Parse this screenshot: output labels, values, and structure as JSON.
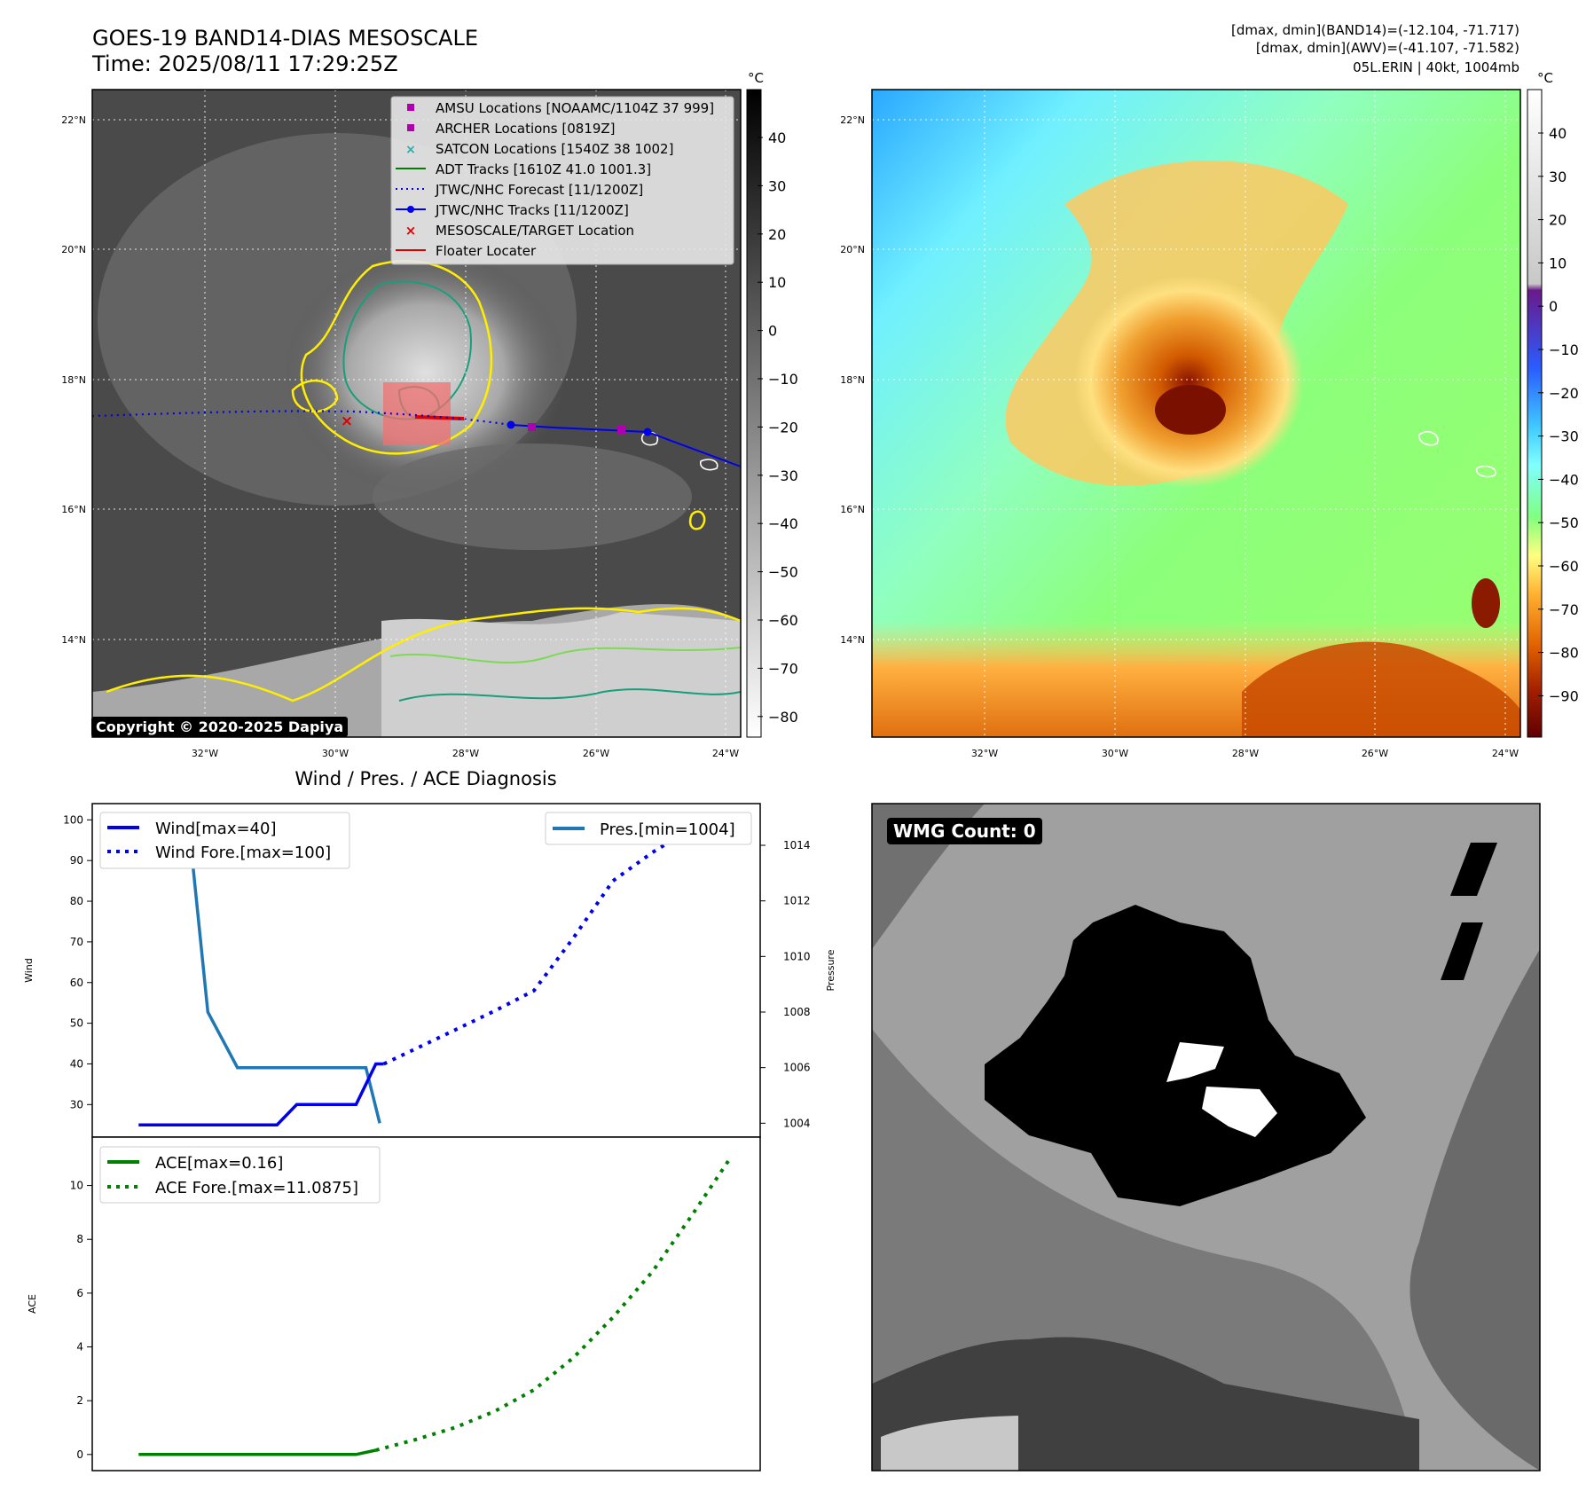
{
  "header": {
    "title_line1": "GOES-19 BAND14-DIAS MESOSCALE",
    "title_line2": "Time: 2025/08/11 17:29:25Z",
    "info_line1": "[dmax, dmin](BAND14)=(-12.104, -71.717)",
    "info_line2": "[dmax, dmin](AWV)=(-41.107, -71.582)",
    "info_line3": "05L.ERIN | 40kt, 1004mb"
  },
  "colors": {
    "track": "#0000ee",
    "forecast": "#0000ee",
    "ace": "#008000",
    "pressure": "#1f77b4",
    "contour_yellow": "#ffee00",
    "contour_green": "#7ed957",
    "contour_teal": "#1a9e7a",
    "target_box": "#f07070",
    "marker_magenta": "#b000b0",
    "marker_red": "#e00000"
  },
  "map": {
    "lat_labels": [
      "22°N",
      "20°N",
      "18°N",
      "16°N",
      "14°N"
    ],
    "lon_labels": [
      "32°W",
      "30°W",
      "28°W",
      "26°W",
      "24°W"
    ],
    "colorbar_left": {
      "unit": "°C",
      "ticks": [
        "40",
        "30",
        "20",
        "10",
        "0",
        "−10",
        "−20",
        "−30",
        "−40",
        "−50",
        "−60",
        "−70",
        "−80"
      ]
    },
    "colorbar_right": {
      "unit": "°C",
      "ticks": [
        "40",
        "30",
        "20",
        "10",
        "0",
        "−10",
        "−20",
        "−30",
        "−40",
        "−50",
        "−60",
        "−70",
        "−80",
        "−90"
      ]
    },
    "legend": [
      {
        "label": "AMSU Locations [NOAAMC/1104Z 37 999]",
        "icon": "square-marker-icon"
      },
      {
        "label": "ARCHER Locations [0819Z]",
        "icon": "square-marker-icon"
      },
      {
        "label": "SATCON Locations [1540Z 38 1002]",
        "icon": "x-marker-icon"
      },
      {
        "label": "ADT Tracks [1610Z 41.0 1001.3]",
        "icon": "line-icon"
      },
      {
        "label": "JTWC/NHC Forecast [11/1200Z]",
        "icon": "dotted-line-icon"
      },
      {
        "label": "JTWC/NHC Tracks [11/1200Z]",
        "icon": "line-dot-icon"
      },
      {
        "label": "MESOSCALE/TARGET Location",
        "icon": "x-marker-icon"
      },
      {
        "label": "Floater Locater",
        "icon": "line-icon"
      }
    ],
    "copyright": "Copyright © 2020-2025 Dapiya"
  },
  "chart_data": [
    {
      "type": "line",
      "title": "Wind / Pres. / ACE Diagnosis",
      "ylabel": "Wind",
      "ylim": [
        22,
        104
      ],
      "yticks": [
        "30",
        "40",
        "50",
        "60",
        "70",
        "80",
        "90",
        "100"
      ],
      "y2label": "Pressure",
      "y2lim": [
        1003.5,
        1015.5
      ],
      "y2ticks": [
        "1004",
        "1006",
        "1008",
        "1010",
        "1012",
        "1014"
      ],
      "x": [
        0,
        1,
        2,
        3,
        4,
        5,
        6,
        7,
        8,
        9,
        10,
        11,
        12,
        13,
        14,
        15,
        16,
        17,
        18,
        19,
        20,
        21,
        22,
        23,
        24,
        25,
        26,
        27,
        28,
        29,
        30,
        31
      ],
      "series": [
        {
          "name": "Wind[max=40]",
          "style": "solid",
          "x": [
            0,
            7,
            8,
            11,
            12,
            12.4
          ],
          "values": [
            25,
            25,
            30,
            30,
            40,
            40
          ]
        },
        {
          "name": "Wind Fore.[max=100]",
          "style": "dotted",
          "x": [
            12.4,
            15,
            18,
            20,
            22,
            24,
            26,
            28,
            30
          ],
          "values": [
            40,
            46,
            53,
            58,
            71,
            85,
            92,
            98,
            100
          ]
        },
        {
          "name": "Pres.[min=1004]",
          "style": "solid",
          "axis": "right",
          "x": [
            1.5,
            2.5,
            3.5,
            5,
            8,
            11.5,
            12.2
          ],
          "values": [
            1015,
            1015,
            1008,
            1006,
            1006,
            1006,
            1004
          ]
        }
      ],
      "legend_left": [
        "Wind[max=40]",
        "Wind Fore.[max=100]"
      ],
      "legend_right": [
        "Pres.[min=1004]"
      ]
    },
    {
      "type": "line",
      "ylabel": "ACE",
      "ylim": [
        -0.6,
        11.8
      ],
      "yticks": [
        "0",
        "2",
        "4",
        "6",
        "8",
        "10"
      ],
      "series": [
        {
          "name": "ACE[max=0.16]",
          "style": "solid",
          "x": [
            0,
            11,
            12
          ],
          "values": [
            0,
            0,
            0.16
          ]
        },
        {
          "name": "ACE Fore.[max=11.0875]",
          "style": "dotted",
          "x": [
            12,
            14,
            16,
            18,
            20,
            22,
            24,
            26,
            28,
            30
          ],
          "values": [
            0.16,
            0.55,
            1.0,
            1.6,
            2.4,
            3.6,
            5.1,
            6.8,
            8.9,
            11.09
          ]
        }
      ],
      "legend": [
        "ACE[max=0.16]",
        "ACE Fore.[max=11.0875]"
      ]
    }
  ],
  "wmg": {
    "badge": "WMG Count: 0"
  }
}
